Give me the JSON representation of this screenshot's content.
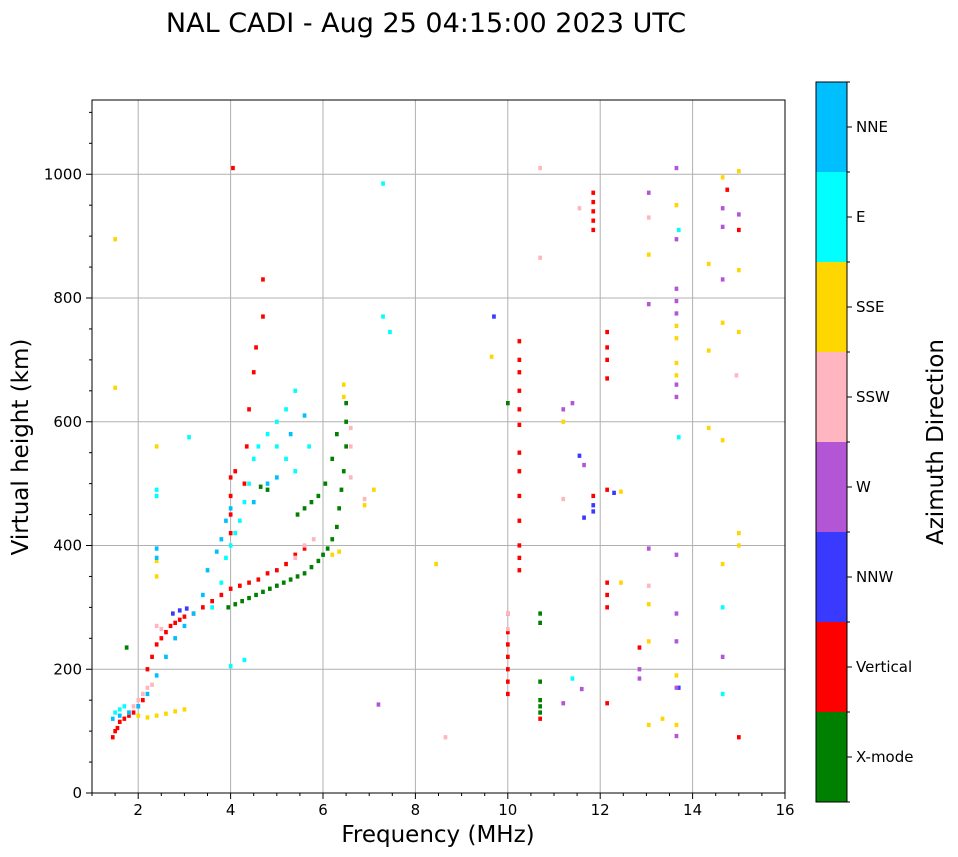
{
  "chart_data": {
    "type": "scatter",
    "title": "NAL CADI - Aug 25 04:15:00 2023 UTC",
    "xlabel": "Frequency (MHz)",
    "ylabel": "Virtual height (km)",
    "xlim": [
      1,
      16
    ],
    "ylim": [
      0,
      1120
    ],
    "xticks": [
      2,
      4,
      6,
      8,
      10,
      12,
      14,
      16
    ],
    "yticks": [
      0,
      200,
      400,
      600,
      800,
      1000
    ],
    "grid": true,
    "colorbar": {
      "label": "Azimuth Direction",
      "categories": [
        "X-mode",
        "Vertical",
        "NNW",
        "W",
        "SSW",
        "SSE",
        "E",
        "NNE"
      ],
      "colors": [
        "#008000",
        "#ff0000",
        "#3a3aff",
        "#b356d6",
        "#ffb6c1",
        "#ffd700",
        "#00ffff",
        "#00bfff"
      ]
    },
    "series": [
      {
        "name": "X-mode",
        "points": [
          [
            3.95,
            300
          ],
          [
            4.1,
            305
          ],
          [
            4.25,
            310
          ],
          [
            4.4,
            315
          ],
          [
            4.55,
            320
          ],
          [
            4.7,
            325
          ],
          [
            4.85,
            330
          ],
          [
            5.0,
            335
          ],
          [
            5.15,
            340
          ],
          [
            5.3,
            345
          ],
          [
            5.45,
            350
          ],
          [
            5.6,
            355
          ],
          [
            5.75,
            365
          ],
          [
            5.9,
            375
          ],
          [
            6.0,
            385
          ],
          [
            6.1,
            395
          ],
          [
            6.2,
            410
          ],
          [
            6.3,
            430
          ],
          [
            6.35,
            460
          ],
          [
            6.4,
            490
          ],
          [
            6.45,
            520
          ],
          [
            6.5,
            560
          ],
          [
            6.5,
            600
          ],
          [
            6.5,
            630
          ],
          [
            6.3,
            580
          ],
          [
            6.2,
            540
          ],
          [
            6.05,
            500
          ],
          [
            5.9,
            480
          ],
          [
            5.75,
            470
          ],
          [
            5.6,
            460
          ],
          [
            5.45,
            450
          ],
          [
            4.8,
            490
          ],
          [
            4.65,
            495
          ],
          [
            10.0,
            630
          ],
          [
            10.7,
            290
          ],
          [
            10.7,
            275
          ],
          [
            10.7,
            180
          ],
          [
            10.7,
            150
          ],
          [
            10.7,
            140
          ],
          [
            10.7,
            130
          ],
          [
            1.75,
            235
          ]
        ]
      },
      {
        "name": "Vertical",
        "points": [
          [
            1.45,
            90
          ],
          [
            1.5,
            100
          ],
          [
            1.55,
            105
          ],
          [
            1.6,
            115
          ],
          [
            1.7,
            120
          ],
          [
            1.8,
            125
          ],
          [
            1.9,
            130
          ],
          [
            2.0,
            140
          ],
          [
            2.1,
            150
          ],
          [
            2.2,
            200
          ],
          [
            2.3,
            220
          ],
          [
            2.4,
            240
          ],
          [
            2.5,
            250
          ],
          [
            2.6,
            260
          ],
          [
            2.7,
            270
          ],
          [
            2.8,
            275
          ],
          [
            2.9,
            280
          ],
          [
            3.0,
            285
          ],
          [
            3.2,
            290
          ],
          [
            3.4,
            300
          ],
          [
            3.6,
            310
          ],
          [
            3.8,
            320
          ],
          [
            4.0,
            330
          ],
          [
            4.2,
            335
          ],
          [
            4.4,
            340
          ],
          [
            4.6,
            345
          ],
          [
            4.8,
            355
          ],
          [
            5.0,
            360
          ],
          [
            5.2,
            370
          ],
          [
            5.4,
            385
          ],
          [
            5.6,
            395
          ],
          [
            4.0,
            420
          ],
          [
            4.0,
            450
          ],
          [
            4.0,
            480
          ],
          [
            4.0,
            510
          ],
          [
            4.1,
            520
          ],
          [
            4.3,
            500
          ],
          [
            4.35,
            560
          ],
          [
            4.4,
            620
          ],
          [
            4.5,
            680
          ],
          [
            4.55,
            720
          ],
          [
            4.7,
            770
          ],
          [
            4.7,
            830
          ],
          [
            4.05,
            1010
          ],
          [
            10.25,
            360
          ],
          [
            10.25,
            380
          ],
          [
            10.25,
            400
          ],
          [
            10.25,
            440
          ],
          [
            10.25,
            480
          ],
          [
            10.25,
            520
          ],
          [
            10.25,
            550
          ],
          [
            10.25,
            595
          ],
          [
            10.25,
            620
          ],
          [
            10.25,
            650
          ],
          [
            10.25,
            680
          ],
          [
            10.25,
            700
          ],
          [
            10.25,
            730
          ],
          [
            10.0,
            160
          ],
          [
            10.0,
            180
          ],
          [
            10.0,
            200
          ],
          [
            10.0,
            220
          ],
          [
            10.0,
            240
          ],
          [
            10.0,
            260
          ],
          [
            10.0,
            290
          ],
          [
            10.7,
            120
          ],
          [
            12.15,
            145
          ],
          [
            12.15,
            300
          ],
          [
            12.15,
            320
          ],
          [
            12.15,
            340
          ],
          [
            12.15,
            490
          ],
          [
            12.15,
            670
          ],
          [
            12.15,
            700
          ],
          [
            12.15,
            720
          ],
          [
            12.15,
            745
          ],
          [
            11.85,
            910
          ],
          [
            11.85,
            925
          ],
          [
            11.85,
            940
          ],
          [
            11.85,
            955
          ],
          [
            11.85,
            970
          ],
          [
            11.85,
            480
          ],
          [
            12.85,
            235
          ],
          [
            14.75,
            975
          ],
          [
            15.0,
            910
          ],
          [
            15.0,
            90
          ]
        ]
      },
      {
        "name": "NNW",
        "points": [
          [
            2.75,
            290
          ],
          [
            2.9,
            295
          ],
          [
            3.05,
            298
          ],
          [
            12.3,
            485
          ],
          [
            11.85,
            455
          ],
          [
            11.85,
            465
          ],
          [
            11.65,
            445
          ],
          [
            11.55,
            545
          ],
          [
            13.7,
            170
          ],
          [
            9.7,
            770
          ]
        ]
      },
      {
        "name": "W",
        "points": [
          [
            12.85,
            185
          ],
          [
            12.85,
            200
          ],
          [
            13.05,
            395
          ],
          [
            13.05,
            790
          ],
          [
            13.05,
            970
          ],
          [
            13.65,
            92
          ],
          [
            13.65,
            170
          ],
          [
            13.65,
            245
          ],
          [
            13.65,
            290
          ],
          [
            13.65,
            385
          ],
          [
            13.65,
            640
          ],
          [
            13.65,
            660
          ],
          [
            13.65,
            775
          ],
          [
            13.65,
            795
          ],
          [
            13.65,
            815
          ],
          [
            13.65,
            895
          ],
          [
            13.65,
            1010
          ],
          [
            14.65,
            220
          ],
          [
            14.65,
            830
          ],
          [
            14.65,
            915
          ],
          [
            14.65,
            945
          ],
          [
            15.0,
            935
          ],
          [
            11.2,
            620
          ],
          [
            11.65,
            530
          ],
          [
            11.6,
            168
          ],
          [
            11.4,
            630
          ],
          [
            11.2,
            145
          ],
          [
            7.2,
            143
          ]
        ]
      },
      {
        "name": "SSW",
        "points": [
          [
            1.8,
            130
          ],
          [
            1.9,
            140
          ],
          [
            2.0,
            150
          ],
          [
            2.1,
            160
          ],
          [
            2.2,
            170
          ],
          [
            2.3,
            175
          ],
          [
            2.4,
            270
          ],
          [
            2.5,
            265
          ],
          [
            5.4,
            380
          ],
          [
            5.6,
            400
          ],
          [
            5.8,
            410
          ],
          [
            6.6,
            590
          ],
          [
            6.6,
            560
          ],
          [
            6.6,
            510
          ],
          [
            6.9,
            475
          ],
          [
            8.65,
            90
          ],
          [
            10.7,
            1010
          ],
          [
            10.7,
            865
          ],
          [
            11.2,
            475
          ],
          [
            11.55,
            945
          ],
          [
            13.05,
            930
          ],
          [
            13.05,
            335
          ],
          [
            14.95,
            675
          ],
          [
            10.0,
            290
          ],
          [
            10.0,
            265
          ]
        ]
      },
      {
        "name": "SSE",
        "points": [
          [
            1.5,
            895
          ],
          [
            1.5,
            655
          ],
          [
            2.0,
            125
          ],
          [
            2.2,
            122
          ],
          [
            2.4,
            125
          ],
          [
            2.6,
            128
          ],
          [
            2.8,
            132
          ],
          [
            3.0,
            135
          ],
          [
            2.4,
            350
          ],
          [
            2.4,
            375
          ],
          [
            2.4,
            560
          ],
          [
            6.2,
            385
          ],
          [
            6.35,
            390
          ],
          [
            6.45,
            640
          ],
          [
            6.45,
            660
          ],
          [
            6.9,
            465
          ],
          [
            7.1,
            490
          ],
          [
            8.45,
            370
          ],
          [
            9.65,
            705
          ],
          [
            11.2,
            600
          ],
          [
            12.45,
            340
          ],
          [
            12.45,
            487
          ],
          [
            13.05,
            110
          ],
          [
            13.05,
            245
          ],
          [
            13.05,
            305
          ],
          [
            13.05,
            870
          ],
          [
            13.35,
            120
          ],
          [
            13.65,
            110
          ],
          [
            13.65,
            190
          ],
          [
            13.65,
            675
          ],
          [
            13.65,
            695
          ],
          [
            13.65,
            735
          ],
          [
            13.65,
            755
          ],
          [
            13.65,
            950
          ],
          [
            14.35,
            715
          ],
          [
            14.35,
            855
          ],
          [
            14.35,
            590
          ],
          [
            14.65,
            370
          ],
          [
            14.65,
            570
          ],
          [
            14.65,
            760
          ],
          [
            14.65,
            995
          ],
          [
            15.0,
            400
          ],
          [
            15.0,
            420
          ],
          [
            15.0,
            745
          ],
          [
            15.0,
            845
          ],
          [
            15.0,
            1005
          ]
        ]
      },
      {
        "name": "E",
        "points": [
          [
            1.5,
            130
          ],
          [
            1.6,
            135
          ],
          [
            1.7,
            140
          ],
          [
            3.6,
            300
          ],
          [
            3.8,
            340
          ],
          [
            3.9,
            380
          ],
          [
            4.0,
            400
          ],
          [
            4.1,
            420
          ],
          [
            4.2,
            440
          ],
          [
            4.3,
            470
          ],
          [
            4.4,
            500
          ],
          [
            4.5,
            540
          ],
          [
            4.6,
            560
          ],
          [
            4.8,
            580
          ],
          [
            5.0,
            600
          ],
          [
            5.2,
            620
          ],
          [
            5.4,
            650
          ],
          [
            5.0,
            560
          ],
          [
            5.2,
            540
          ],
          [
            5.4,
            520
          ],
          [
            5.7,
            560
          ],
          [
            4.0,
            205
          ],
          [
            4.3,
            215
          ],
          [
            2.4,
            480
          ],
          [
            2.4,
            490
          ],
          [
            3.1,
            575
          ],
          [
            7.3,
            770
          ],
          [
            7.45,
            745
          ],
          [
            7.3,
            985
          ],
          [
            11.4,
            185
          ],
          [
            13.7,
            575
          ],
          [
            13.7,
            910
          ],
          [
            14.65,
            300
          ],
          [
            14.65,
            160
          ]
        ]
      },
      {
        "name": "NNE",
        "points": [
          [
            1.45,
            120
          ],
          [
            1.6,
            125
          ],
          [
            1.8,
            130
          ],
          [
            2.0,
            140
          ],
          [
            2.2,
            160
          ],
          [
            2.4,
            190
          ],
          [
            2.6,
            220
          ],
          [
            2.8,
            250
          ],
          [
            3.0,
            270
          ],
          [
            3.2,
            290
          ],
          [
            3.4,
            320
          ],
          [
            3.5,
            360
          ],
          [
            3.7,
            390
          ],
          [
            3.8,
            410
          ],
          [
            3.9,
            440
          ],
          [
            4.0,
            460
          ],
          [
            4.5,
            470
          ],
          [
            4.8,
            500
          ],
          [
            5.0,
            510
          ],
          [
            5.3,
            580
          ],
          [
            5.6,
            610
          ],
          [
            2.4,
            380
          ],
          [
            2.4,
            395
          ]
        ]
      }
    ]
  }
}
